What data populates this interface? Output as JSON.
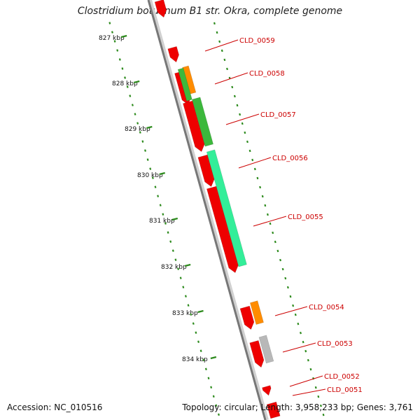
{
  "title": "Clostridium botulinum B1 str. Okra, complete genome",
  "footer": {
    "accession": "Accession: NC_010516",
    "summary": "Topology: circular; Length: 3,958,233 bp; Genes: 3,761"
  },
  "colors": {
    "backbone": "#7a7a7a",
    "tick": "#2e8b1e",
    "label": "#cc0000",
    "red": "#ee0000",
    "orange": "#ff8c00",
    "green": "#3cb83c",
    "aquamarine": "#33ee99",
    "gray": "#b8b8b8"
  },
  "scale_labels": [
    "827 kbp",
    "828 kbp",
    "829 kbp",
    "830 kbp",
    "831 kbp",
    "832 kbp",
    "833 kbp",
    "834 kbp"
  ],
  "genes": [
    {
      "name": "",
      "track": "outer",
      "color": "red"
    },
    {
      "name": "CLD_0059",
      "track": "outer",
      "color": "red"
    },
    {
      "name": "CLD_0058",
      "track": "inner",
      "color": "orange"
    },
    {
      "name": "",
      "track": "outer",
      "color": "red"
    },
    {
      "name": "CLD_0057",
      "track": "inner",
      "color": "green"
    },
    {
      "name": "",
      "track": "outer",
      "color": "red"
    },
    {
      "name": "",
      "track": "outer",
      "color": "red"
    },
    {
      "name": "CLD_0056",
      "track": "inner",
      "color": "aquamarine"
    },
    {
      "name": "CLD_0055",
      "track": "outer",
      "color": "red"
    },
    {
      "name": "",
      "track": "outer",
      "color": "red"
    },
    {
      "name": "CLD_0054",
      "track": "inner",
      "color": "orange"
    },
    {
      "name": "",
      "track": "outer",
      "color": "red"
    },
    {
      "name": "CLD_0053",
      "track": "inner",
      "color": "gray"
    },
    {
      "name": "CLD_0052",
      "track": "outer",
      "color": "red"
    },
    {
      "name": "CLD_0051",
      "track": "outer",
      "color": "red"
    }
  ]
}
